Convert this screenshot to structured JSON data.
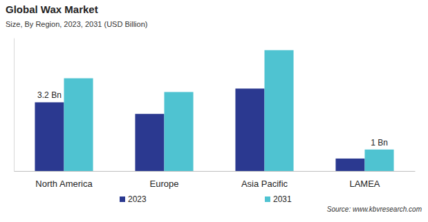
{
  "chart_data": {
    "type": "bar",
    "title": "Global Wax Market",
    "subtitle": "Size, By Region, 2023, 2031 (USD Billion)",
    "categories": [
      "North America",
      "Europe",
      "Asia Pacific",
      "LAMEA"
    ],
    "series": [
      {
        "name": "2023",
        "color": "#2b3990",
        "values": [
          3.2,
          2.66,
          3.84,
          0.58
        ],
        "value_labels": [
          "3.2 Bn",
          null,
          null,
          null
        ]
      },
      {
        "name": "2031",
        "color": "#4fc3d1",
        "values": [
          4.32,
          3.68,
          5.63,
          1.0
        ],
        "value_labels": [
          null,
          null,
          null,
          "1 Bn"
        ]
      }
    ],
    "ylim": [
      0,
      6.2
    ],
    "tick_labels": "x",
    "grid": false,
    "legend": "bottom",
    "source": "Source: www.kbvresearch.com"
  }
}
